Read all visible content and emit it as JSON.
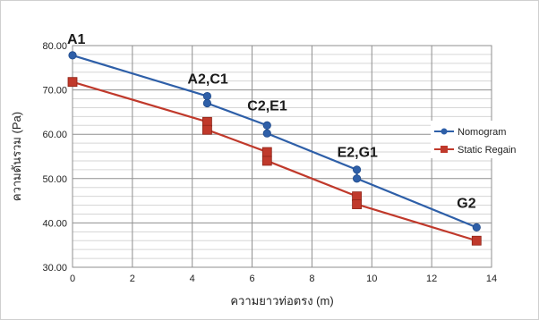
{
  "chart_data": {
    "type": "line",
    "xlabel": "ความยาวท่อตรง (m)",
    "ylabel": "ความดันรวม (Pa)",
    "xlim": [
      0,
      14
    ],
    "ylim": [
      30,
      80
    ],
    "xticks": [
      0,
      2,
      4,
      6,
      8,
      10,
      12,
      14
    ],
    "yticks": [
      30,
      40,
      50,
      60,
      70,
      80
    ],
    "ytick_labels": [
      "30.00",
      "40.00",
      "50.00",
      "60.00",
      "70.00",
      "80.00"
    ],
    "grid": true,
    "legend": "right",
    "series": [
      {
        "name": "Nomogram",
        "color": "#2e5fa8",
        "marker": "circle",
        "x": [
          0,
          4.5,
          4.5,
          6.5,
          6.5,
          9.5,
          9.5,
          13.5
        ],
        "y": [
          77.8,
          68.6,
          67.0,
          62.0,
          60.2,
          52.0,
          50.0,
          39.0
        ]
      },
      {
        "name": "Static Regain",
        "color": "#c0392b",
        "marker": "square",
        "x": [
          0,
          4.5,
          4.5,
          6.5,
          6.5,
          9.5,
          9.5,
          13.5
        ],
        "y": [
          71.8,
          62.8,
          61.0,
          56.0,
          54.0,
          46.0,
          44.2,
          36.0
        ]
      }
    ],
    "annotations": [
      {
        "text": "A1",
        "x": 0,
        "y": 80
      },
      {
        "text": "A2,C1",
        "x": 4.5,
        "y": 71
      },
      {
        "text": "C2,E1",
        "x": 6.5,
        "y": 65
      },
      {
        "text": "E2,G1",
        "x": 9.5,
        "y": 54.5
      },
      {
        "text": "G2",
        "x": 13.5,
        "y": 43
      }
    ]
  }
}
